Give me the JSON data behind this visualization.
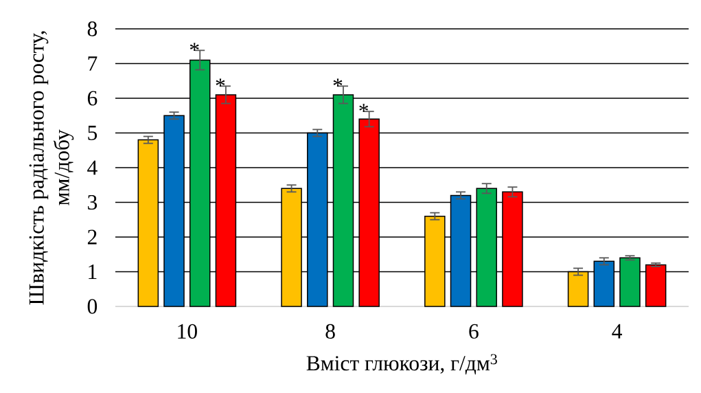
{
  "chart_data": {
    "type": "bar",
    "xlabel": "Вміст глюкози, г/дм$^{3}$",
    "ylabel": "Швидкість радіального росту, мм/добу",
    "categories": [
      "10",
      "8",
      "6",
      "4"
    ],
    "series": [
      {
        "color": "#ffc000",
        "values": [
          4.8,
          3.4,
          2.6,
          1.0
        ],
        "errors": [
          0.1,
          0.1,
          0.1,
          0.1
        ]
      },
      {
        "color": "#0070c0",
        "values": [
          5.5,
          5.0,
          3.2,
          1.3
        ],
        "errors": [
          0.1,
          0.1,
          0.1,
          0.1
        ]
      },
      {
        "color": "#00b050",
        "values": [
          7.1,
          6.1,
          3.4,
          1.4
        ],
        "errors": [
          0.28,
          0.25,
          0.14,
          0.06
        ]
      },
      {
        "color": "#ff0000",
        "values": [
          6.1,
          5.4,
          3.3,
          1.2
        ],
        "errors": [
          0.25,
          0.22,
          0.14,
          0.05
        ]
      }
    ],
    "ylim": [
      0,
      8
    ],
    "yticks": [
      0,
      1,
      2,
      3,
      4,
      5,
      6,
      7,
      8
    ],
    "grid": "y",
    "annotations": [
      {
        "text": "*",
        "x": "10",
        "y": 7.1
      },
      {
        "text": "*",
        "x": "10",
        "y": 6.1
      },
      {
        "text": "*",
        "x": "8",
        "y": 6.1
      },
      {
        "text": "*",
        "x": "8",
        "y": 5.4
      }
    ]
  }
}
